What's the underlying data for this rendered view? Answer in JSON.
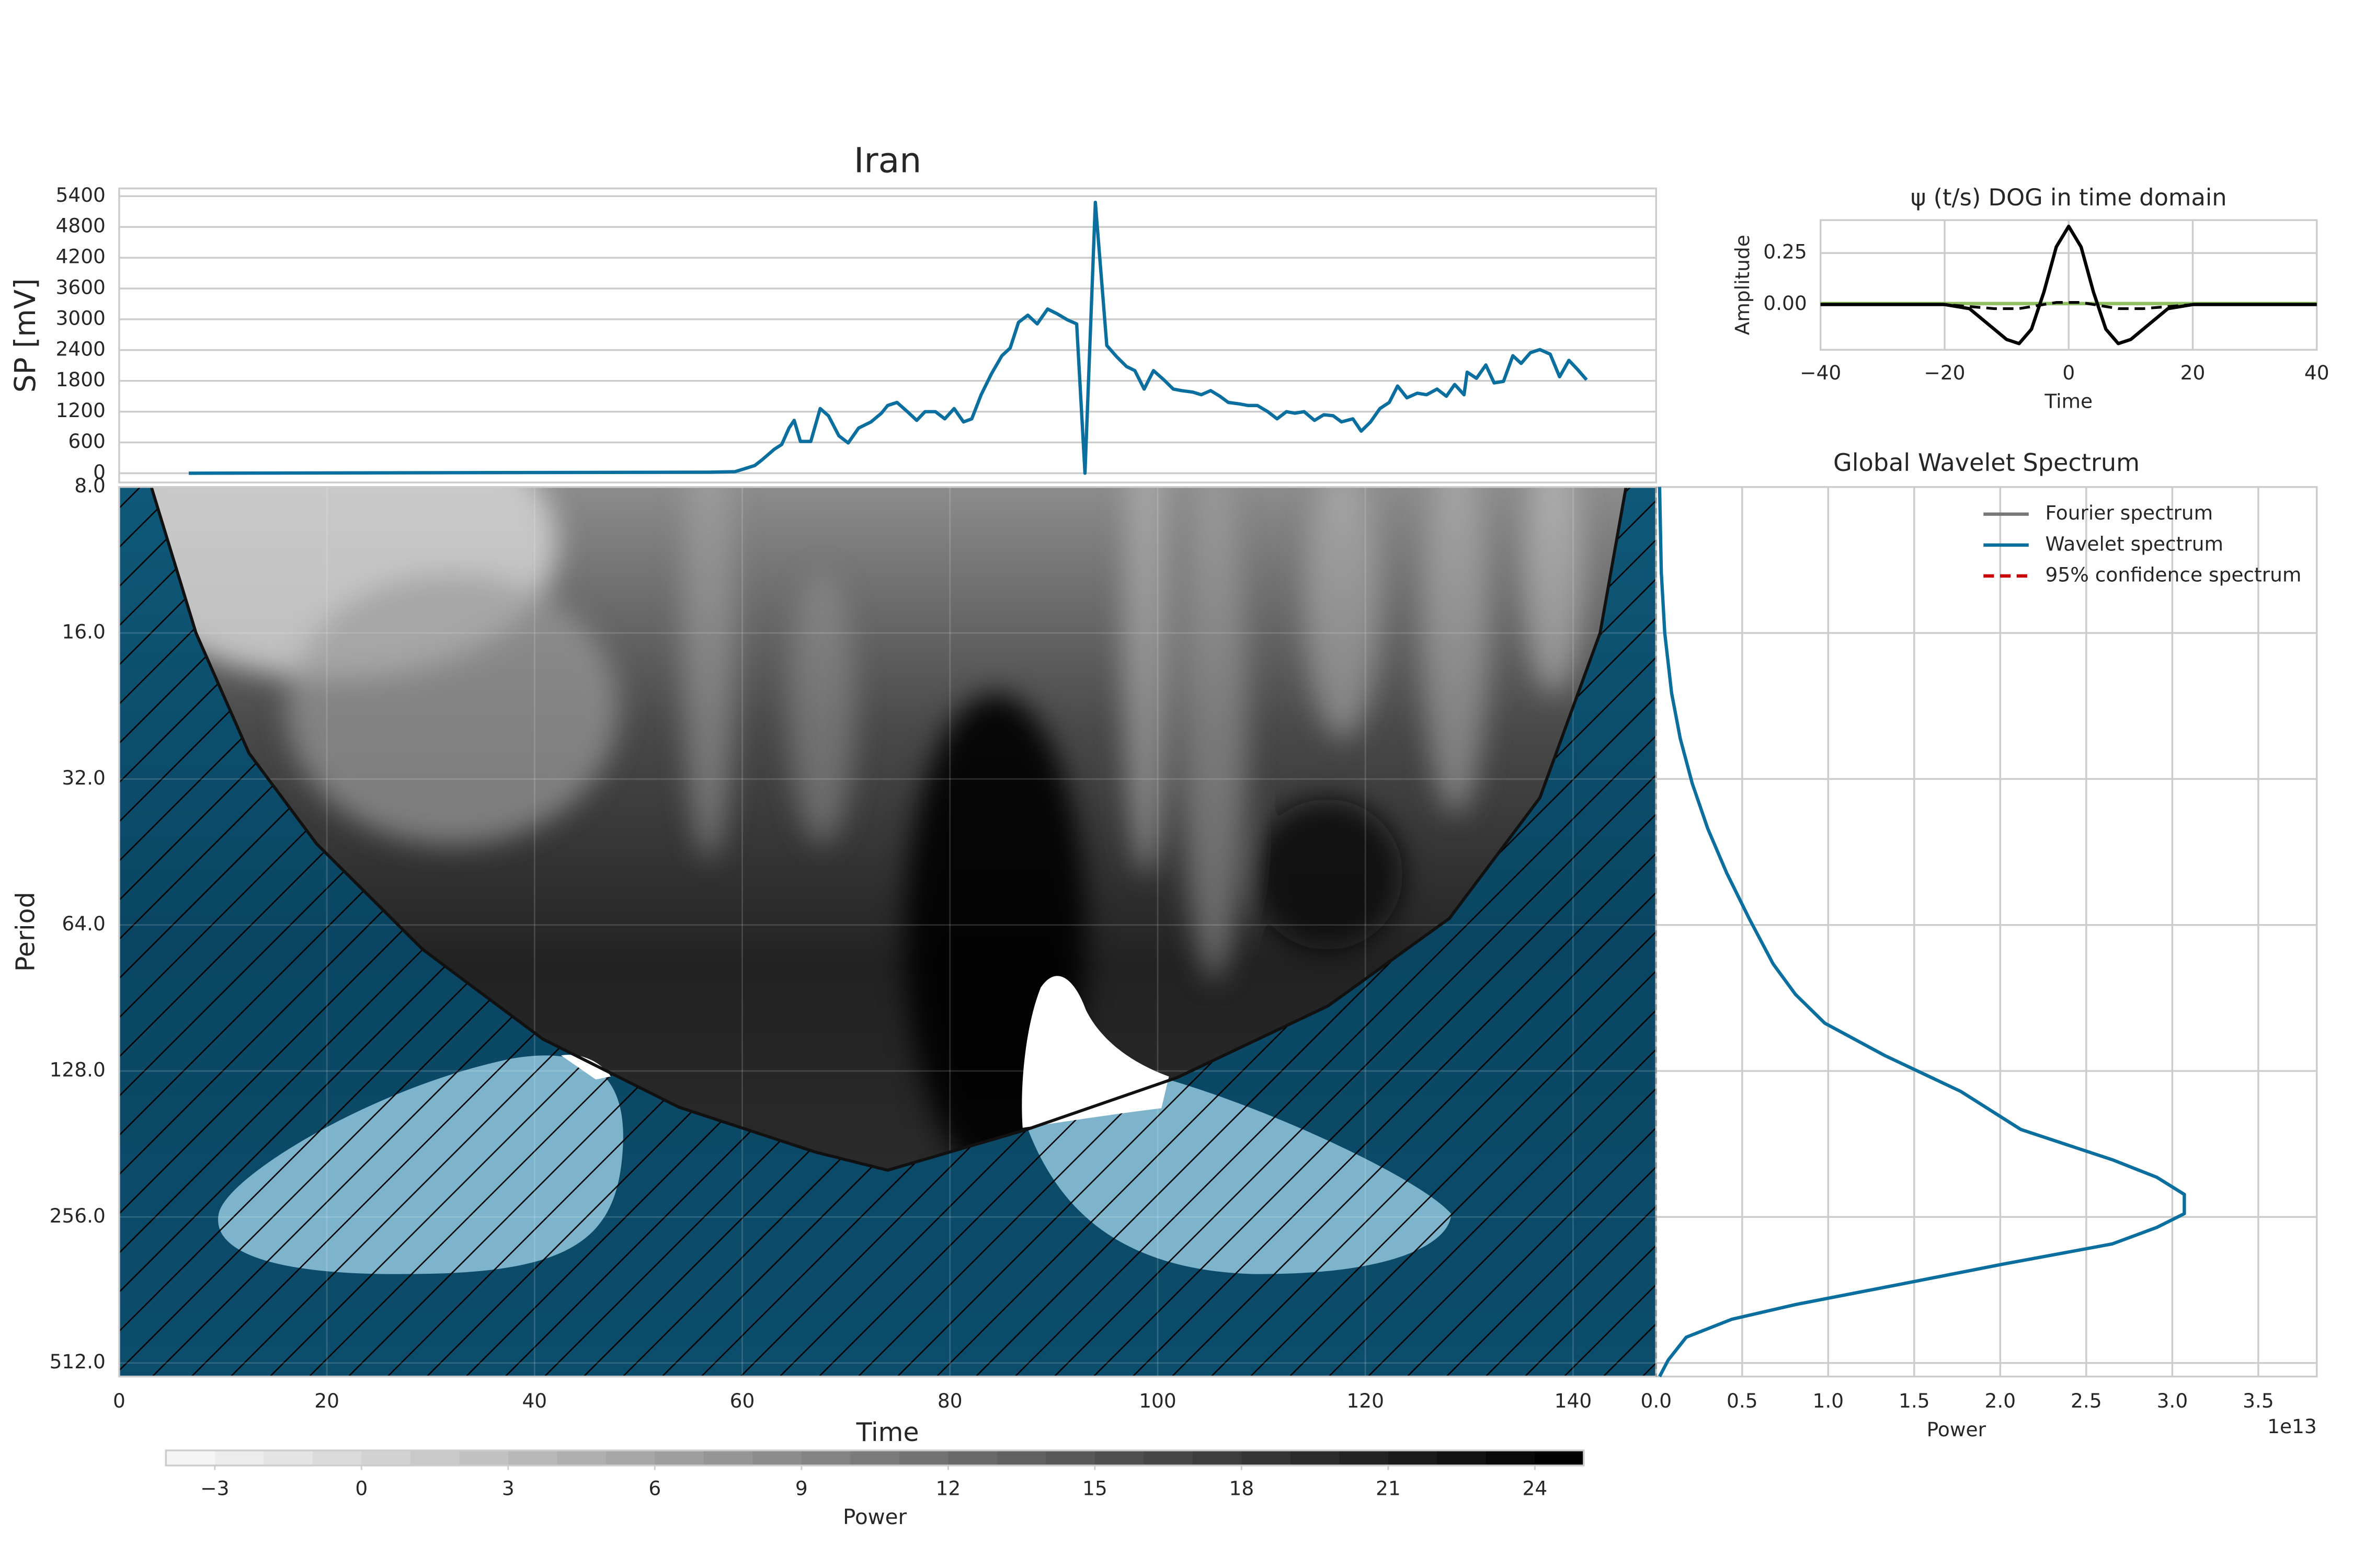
{
  "chart_data": [
    {
      "type": "line",
      "title": "Iran",
      "ylabel": "SP [mV]",
      "x": [
        6.7,
        56.8,
        59.3,
        61.2,
        61.9,
        63.1,
        63.8,
        64.5,
        65,
        65.6,
        66.6,
        67.5,
        68.3,
        69.3,
        70.2,
        71.2,
        72.4,
        73.4,
        74,
        74.9,
        75.9,
        76.8,
        77.6,
        78.6,
        79.5,
        80.4,
        81.3,
        82.1,
        83,
        84,
        85,
        85.8,
        86.6,
        87.5,
        88.4,
        89.4,
        90.3,
        91.3,
        92.2,
        93,
        94,
        95.1,
        96.1,
        97,
        97.8,
        98.7,
        99.6,
        100.6,
        101.5,
        102.3,
        103.4,
        104.2,
        105.1,
        106,
        106.8,
        107.9,
        108.7,
        109.6,
        110.6,
        111.5,
        112.4,
        113.2,
        114.1,
        115.1,
        116,
        116.9,
        117.7,
        118.8,
        119.6,
        120.5,
        121.4,
        122.3,
        123.1,
        124,
        125,
        125.9,
        126.9,
        127.8,
        128.6,
        129.5,
        129.8,
        130.7,
        131.6,
        132.4,
        133.3,
        134.2,
        135,
        135.9,
        136.8,
        137.8,
        138.7,
        139.6,
        140.4,
        141.3
      ],
      "values": [
        0,
        20,
        30,
        150,
        260,
        470,
        560,
        880,
        1030,
        620,
        620,
        1260,
        1120,
        730,
        590,
        880,
        1000,
        1170,
        1320,
        1380,
        1200,
        1030,
        1200,
        1200,
        1060,
        1260,
        1000,
        1060,
        1530,
        1940,
        2290,
        2440,
        2940,
        3080,
        2910,
        3200,
        3110,
        2990,
        2910,
        0,
        5280,
        2490,
        2260,
        2080,
        2000,
        1640,
        2000,
        1820,
        1640,
        1610,
        1580,
        1530,
        1610,
        1500,
        1380,
        1350,
        1320,
        1320,
        1200,
        1060,
        1200,
        1170,
        1200,
        1030,
        1140,
        1120,
        1000,
        1060,
        820,
        1000,
        1260,
        1380,
        1700,
        1470,
        1560,
        1530,
        1640,
        1500,
        1730,
        1530,
        1970,
        1850,
        2110,
        1760,
        1790,
        2290,
        2140,
        2350,
        2410,
        2320,
        1880,
        2200,
        2030,
        1820
      ],
      "color": "#0a6f9e",
      "xlim": [
        0,
        148
      ],
      "ylim": [
        -180,
        5550
      ],
      "yticks": [
        0,
        600,
        1200,
        1800,
        2400,
        3000,
        3600,
        4200,
        4800,
        5400
      ],
      "grid": true
    },
    {
      "type": "line",
      "title": "ψ (t/s) DOG in time domain",
      "xlabel": "Time",
      "ylabel": "Amplitude",
      "x": [
        -40,
        -30,
        -20,
        -16,
        -12,
        -10,
        -8,
        -6,
        -4,
        -2,
        0,
        2,
        4,
        6,
        8,
        10,
        12,
        16,
        20,
        30,
        40
      ],
      "series": [
        {
          "color": "#000000",
          "values": [
            0,
            0,
            0,
            -0.02,
            -0.12,
            -0.17,
            -0.19,
            -0.12,
            0.06,
            0.28,
            0.38,
            0.28,
            0.06,
            -0.12,
            -0.19,
            -0.17,
            -0.12,
            -0.02,
            0,
            0,
            0
          ]
        },
        {
          "color": "#000000",
          "dash": true,
          "values": [
            0,
            0,
            0,
            -0.01,
            -0.02,
            -0.02,
            -0.02,
            -0.01,
            0,
            0.01,
            0.01,
            0.01,
            0,
            -0.01,
            -0.02,
            -0.02,
            -0.02,
            -0.01,
            0,
            0,
            0
          ]
        },
        {
          "color": "#8fbf60",
          "values": [
            0.005,
            0.005,
            0.005,
            0.005,
            0.005,
            0.005,
            0.005,
            0.005,
            0.005,
            0.005,
            0.005,
            0.005,
            0.005,
            0.005,
            0.005,
            0.005,
            0.005,
            0.005,
            0.005,
            0.005,
            0.005
          ]
        }
      ],
      "xlim": [
        -40,
        40
      ],
      "ylim": [
        -0.22,
        0.41
      ],
      "xticks": [
        {
          "value": -40,
          "label": "−40"
        },
        {
          "value": -20,
          "label": "−20"
        },
        0,
        20,
        40
      ],
      "yticks": [
        {
          "value": 0,
          "label": "0.00"
        },
        0.25
      ],
      "grid": true
    },
    {
      "type": "contour",
      "xlabel": "Time",
      "ylabel": "Period",
      "xlim": [
        0,
        148
      ],
      "ylim": [
        8,
        546
      ],
      "ylog": true,
      "yinvert": true,
      "xticks": [
        0,
        20,
        40,
        60,
        80,
        100,
        120,
        140
      ],
      "yticks": [
        {
          "value": 8,
          "label": "8.0"
        },
        {
          "value": 16,
          "label": "16.0"
        },
        {
          "value": 32,
          "label": "32.0"
        },
        {
          "value": 64,
          "label": "64.0"
        },
        {
          "value": 128,
          "label": "128.0"
        },
        {
          "value": 256,
          "label": "256.0"
        },
        {
          "value": 512,
          "label": "512.0"
        }
      ],
      "coi": {
        "x": [
          3.1,
          7.4,
          12.5,
          19.0,
          29.2,
          40.8,
          53.9,
          67.0,
          74.0,
          87.4,
          101.9,
          116.4,
          128.1,
          136.8,
          142.6,
          145.1
        ],
        "y": [
          8,
          16,
          28.3,
          43.5,
          71.8,
          110,
          152,
          188,
          205,
          169,
          132,
          94,
          62,
          35,
          16,
          8
        ]
      },
      "colorbar": {
        "label": "Power",
        "clim": [
          -4,
          25
        ],
        "ticks": [
          {
            "value": -3,
            "label": "−3"
          },
          0,
          3,
          6,
          9,
          12,
          15,
          18,
          21,
          24
        ]
      }
    },
    {
      "type": "line",
      "orientation": "horizontal",
      "title": "Global Wavelet Spectrum",
      "xlabel": "Power",
      "offset_label": "1e13",
      "xlim": [
        0,
        3.84
      ],
      "ylim": [
        8,
        546
      ],
      "ylog": true,
      "yinvert": true,
      "xticks": [
        {
          "value": 0,
          "label": "0.0"
        },
        0.5,
        {
          "value": 1,
          "label": "1.0"
        },
        1.5,
        {
          "value": 2,
          "label": "2.0"
        },
        2.5,
        {
          "value": 3,
          "label": "3.0"
        },
        3.5
      ],
      "y": [
        8,
        12,
        16,
        21.3,
        26.4,
        32.7,
        40.5,
        50,
        62,
        77,
        89,
        102,
        119,
        141,
        169,
        195,
        212,
        230,
        252,
        269,
        291,
        320,
        350,
        388,
        416,
        453,
        505,
        546
      ],
      "series": [
        {
          "name": "Fourier spectrum",
          "color": "#777777"
        },
        {
          "name": "Wavelet spectrum",
          "color": "#0a6f9e",
          "values": [
            0.02,
            0.03,
            0.05,
            0.09,
            0.14,
            0.21,
            0.3,
            0.41,
            0.54,
            0.68,
            0.81,
            0.98,
            1.33,
            1.77,
            2.12,
            2.65,
            2.91,
            3.07,
            3.07,
            2.91,
            2.65,
            2.02,
            1.46,
            0.81,
            0.44,
            0.175,
            0.07,
            0.02
          ]
        },
        {
          "name": "95% confidence spectrum",
          "color": "#cc0000",
          "dash": true
        }
      ],
      "legend": "upper right",
      "grid": true
    }
  ]
}
